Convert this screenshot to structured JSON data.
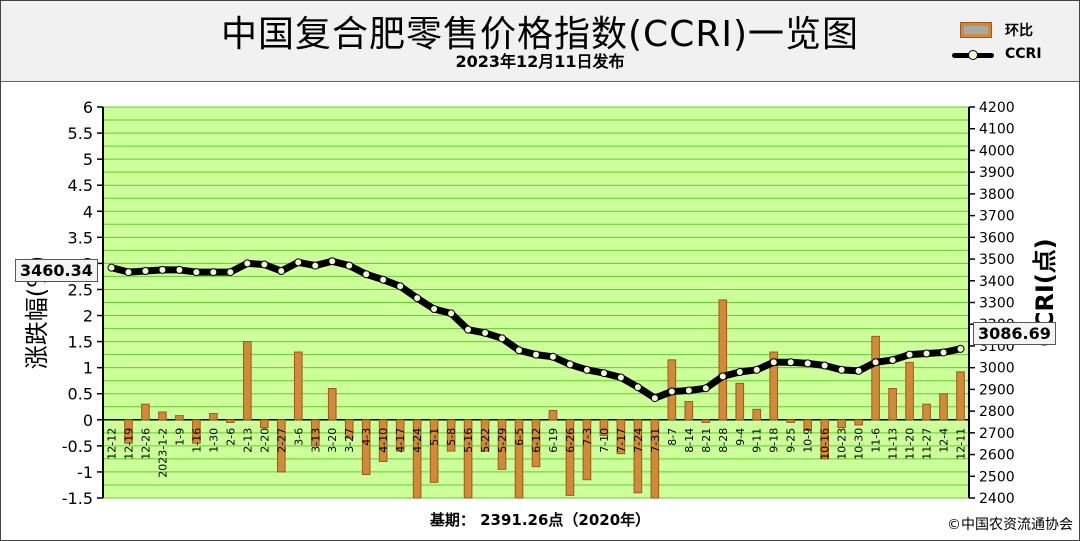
{
  "header": {
    "title": "中国复合肥零售价格指数(CCRI)一览图",
    "subtitle": "2023年12月11日发布"
  },
  "legend": {
    "bar_label": "环比",
    "line_label": "CCRI"
  },
  "callouts": {
    "first": "3460.34",
    "last": "3086.69"
  },
  "footer": {
    "base_note": "基期：  2391.26点（2020年）",
    "copyright": "©中国农资流通协会"
  },
  "colors": {
    "plot_bg": "#ccff99",
    "grid": "#66cc33",
    "bar_fill": "#d18a3a",
    "bar_edge": "#9a5a1c",
    "line": "#000000",
    "marker": "#f6f6d6"
  },
  "chart_data": {
    "type": "bar+line",
    "title": "中国复合肥零售价格指数(CCRI)一览图",
    "ylabel": "涨跌幅(%)",
    "y2label": "CCRI(点)",
    "ylim": [
      -1.5,
      6
    ],
    "y2lim": [
      2400,
      4200
    ],
    "yticks": [
      "-1.5",
      "-1",
      "-0.5",
      "0",
      "0.5",
      "1",
      "1.5",
      "2",
      "2.5",
      "3",
      "3.5",
      "4",
      "4.5",
      "5",
      "5.5",
      "6"
    ],
    "y2ticks": [
      "2400",
      "2500",
      "2600",
      "2700",
      "2800",
      "2900",
      "3000",
      "3100",
      "3200",
      "3300",
      "3400",
      "3500",
      "3600",
      "3700",
      "3800",
      "3900",
      "4000",
      "4100",
      "4200"
    ],
    "grid": true,
    "categories": [
      "12-12",
      "12-19",
      "12-26",
      "2023-1-2",
      "1-9",
      "1-16",
      "1-30",
      "2-6",
      "2-13",
      "2-20",
      "2-27",
      "3-6",
      "3-13",
      "3-20",
      "3-27",
      "4-3",
      "4-10",
      "4-17",
      "4-24",
      "5-1",
      "5-8",
      "5-16",
      "5-22",
      "5-29",
      "6-5",
      "6-12",
      "6-19",
      "6-26",
      "7-3",
      "7-10",
      "7-17",
      "7-24",
      "7-31",
      "8-7",
      "8-14",
      "8-21",
      "8-28",
      "9-4",
      "9-11",
      "9-18",
      "9-25",
      "10-9",
      "10-16",
      "10-23",
      "10-30",
      "11-6",
      "11-13",
      "11-20",
      "11-27",
      "12-4",
      "12-11"
    ],
    "series": [
      {
        "name": "环比",
        "type": "bar",
        "values": [
          0.0,
          -0.45,
          0.3,
          0.15,
          0.08,
          -0.45,
          0.12,
          -0.05,
          1.5,
          -0.15,
          -1.0,
          1.3,
          -0.5,
          0.6,
          -0.35,
          -1.05,
          -0.8,
          -0.6,
          -1.5,
          -1.2,
          -0.6,
          -1.5,
          -0.6,
          -0.95,
          -1.5,
          -0.9,
          0.18,
          -1.45,
          -1.15,
          -0.3,
          -0.65,
          -1.4,
          -1.5,
          1.15,
          0.35,
          -0.05,
          2.3,
          0.7,
          0.2,
          1.3,
          -0.05,
          -0.2,
          -0.75,
          -0.15,
          -0.1,
          1.6,
          0.6,
          1.1,
          0.3,
          0.5,
          0.92
        ]
      },
      {
        "name": "CCRI",
        "type": "line",
        "values": [
          3460.34,
          3440,
          3445,
          3450,
          3450,
          3440,
          3440,
          3440,
          3480,
          3475,
          3445,
          3485,
          3470,
          3490,
          3470,
          3430,
          3405,
          3375,
          3320,
          3270,
          3250,
          3175,
          3160,
          3135,
          3080,
          3060,
          3050,
          3015,
          2990,
          2975,
          2955,
          2910,
          2860,
          2890,
          2895,
          2905,
          2960,
          2980,
          2990,
          3025,
          3025,
          3020,
          3010,
          2990,
          2985,
          3025,
          3035,
          3060,
          3065,
          3070,
          3086.69
        ]
      }
    ]
  }
}
